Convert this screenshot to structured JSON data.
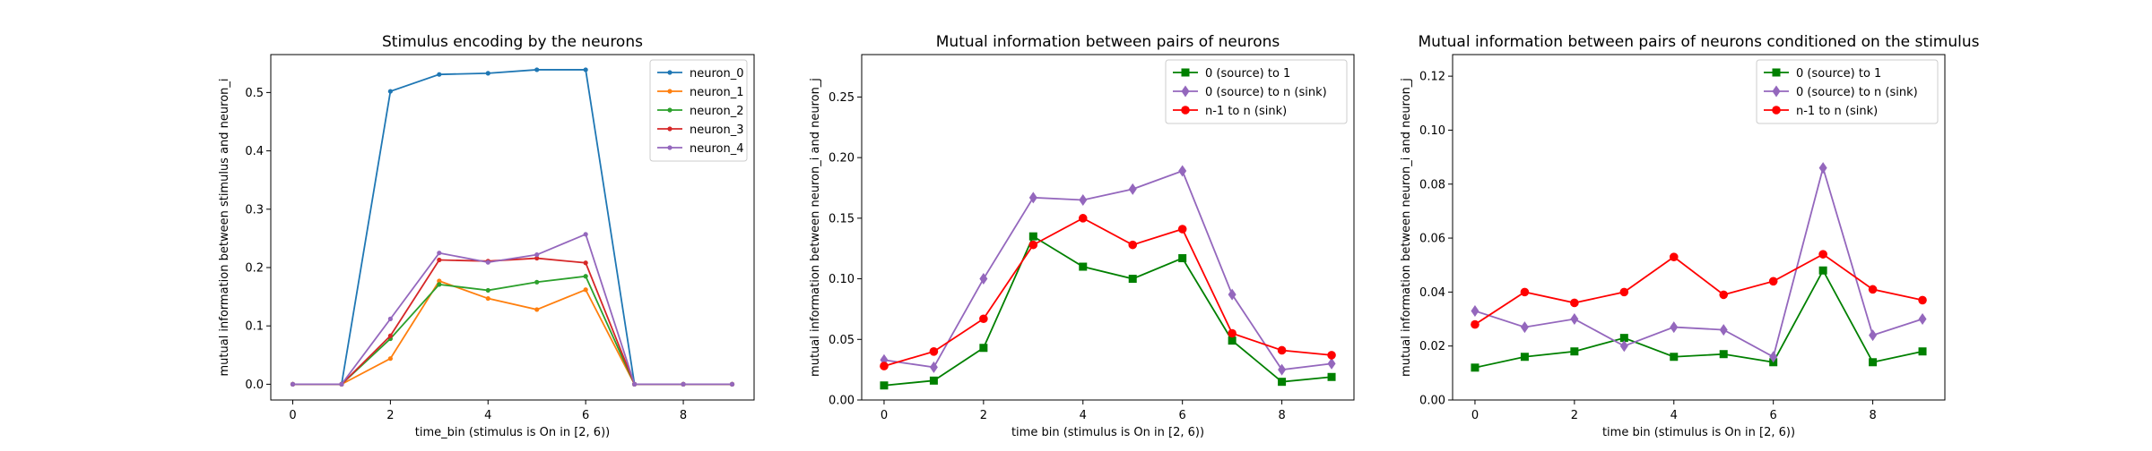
{
  "chart_data": [
    {
      "type": "line",
      "title": "Stimulus encoding by the neurons",
      "xlabel": "time_bin (stimulus is On in [2, 6))",
      "ylabel": "mutual information between stimulus and neuron_i",
      "xlim": [
        -0.45,
        9.45
      ],
      "ylim": [
        -0.027,
        0.565
      ],
      "xticks": [
        0,
        2,
        4,
        6,
        8
      ],
      "xtick_labels": [
        "0",
        "2",
        "4",
        "6",
        "8"
      ],
      "yticks": [
        0.0,
        0.1,
        0.2,
        0.3,
        0.4,
        0.5
      ],
      "ytick_labels": [
        "0.0",
        "0.1",
        "0.2",
        "0.3",
        "0.4",
        "0.5"
      ],
      "grid": false,
      "legend_position": "top-right",
      "x": [
        0,
        1,
        2,
        3,
        4,
        5,
        6,
        7,
        8,
        9
      ],
      "series": [
        {
          "name": "neuron_0",
          "color": "#1f77b4",
          "marker": "dot",
          "values": [
            0.0,
            0.0,
            0.502,
            0.531,
            0.533,
            0.539,
            0.539,
            0.0,
            0.0,
            0.0
          ]
        },
        {
          "name": "neuron_1",
          "color": "#ff7f0e",
          "marker": "dot",
          "values": [
            0.0,
            0.0,
            0.044,
            0.177,
            0.147,
            0.128,
            0.162,
            0.0,
            0.0,
            0.0
          ]
        },
        {
          "name": "neuron_2",
          "color": "#2ca02c",
          "marker": "dot",
          "values": [
            0.0,
            0.0,
            0.078,
            0.171,
            0.161,
            0.175,
            0.185,
            0.0,
            0.0,
            0.0
          ]
        },
        {
          "name": "neuron_3",
          "color": "#d62728",
          "marker": "dot",
          "values": [
            0.0,
            0.0,
            0.083,
            0.213,
            0.211,
            0.216,
            0.208,
            0.0,
            0.0,
            0.0
          ]
        },
        {
          "name": "neuron_4",
          "color": "#9467bd",
          "marker": "dot",
          "values": [
            0.0,
            0.0,
            0.112,
            0.225,
            0.209,
            0.222,
            0.257,
            0.0,
            0.0,
            0.0
          ]
        }
      ]
    },
    {
      "type": "line",
      "title": "Mutual information between pairs of neurons",
      "xlabel": "time bin (stimulus is On in [2, 6))",
      "ylabel": "mutual information between neuron_i and neuron_j",
      "xlim": [
        -0.45,
        9.45
      ],
      "ylim": [
        0.0,
        0.285
      ],
      "xticks": [
        0,
        2,
        4,
        6,
        8
      ],
      "xtick_labels": [
        "0",
        "2",
        "4",
        "6",
        "8"
      ],
      "yticks": [
        0.0,
        0.05,
        0.1,
        0.15,
        0.2,
        0.25
      ],
      "ytick_labels": [
        "0.00",
        "0.05",
        "0.10",
        "0.15",
        "0.20",
        "0.25"
      ],
      "grid": false,
      "legend_position": "top-right",
      "x": [
        0,
        1,
        2,
        3,
        4,
        5,
        6,
        7,
        8,
        9
      ],
      "series": [
        {
          "name": "0 (source) to 1",
          "color": "#008000",
          "marker": "square",
          "values": [
            0.012,
            0.016,
            0.043,
            0.135,
            0.11,
            0.1,
            0.117,
            0.049,
            0.015,
            0.019
          ]
        },
        {
          "name": "0 (source) to n (sink)",
          "color": "#9467bd",
          "marker": "diamond",
          "values": [
            0.033,
            0.027,
            0.1,
            0.167,
            0.165,
            0.174,
            0.189,
            0.087,
            0.025,
            0.03
          ]
        },
        {
          "name": "n-1 to n (sink)",
          "color": "#ff0000",
          "marker": "circle",
          "values": [
            0.028,
            0.04,
            0.067,
            0.128,
            0.15,
            0.128,
            0.141,
            0.055,
            0.041,
            0.037
          ]
        }
      ]
    },
    {
      "type": "line",
      "title": "Mutual information between pairs of neurons conditioned on the stimulus",
      "xlabel": "time bin (stimulus is On in [2, 6))",
      "ylabel": "mutual information between neuron_i and neuron_j",
      "xlim": [
        -0.45,
        9.45
      ],
      "ylim": [
        0.0,
        0.128
      ],
      "xticks": [
        0,
        2,
        4,
        6,
        8
      ],
      "xtick_labels": [
        "0",
        "2",
        "4",
        "6",
        "8"
      ],
      "yticks": [
        0.0,
        0.02,
        0.04,
        0.06,
        0.08,
        0.1,
        0.12
      ],
      "ytick_labels": [
        "0.00",
        "0.02",
        "0.04",
        "0.06",
        "0.08",
        "0.10",
        "0.12"
      ],
      "grid": false,
      "legend_position": "top-right",
      "x": [
        0,
        1,
        2,
        3,
        4,
        5,
        6,
        7,
        8,
        9
      ],
      "series": [
        {
          "name": "0 (source) to 1",
          "color": "#008000",
          "marker": "square",
          "values": [
            0.012,
            0.016,
            0.018,
            0.023,
            0.016,
            0.017,
            0.014,
            0.048,
            0.014,
            0.018
          ]
        },
        {
          "name": "0 (source) to n (sink)",
          "color": "#9467bd",
          "marker": "diamond",
          "values": [
            0.033,
            0.027,
            0.03,
            0.02,
            0.027,
            0.026,
            0.016,
            0.086,
            0.024,
            0.03
          ]
        },
        {
          "name": "n-1 to n (sink)",
          "color": "#ff0000",
          "marker": "circle",
          "values": [
            0.028,
            0.04,
            0.036,
            0.04,
            0.053,
            0.039,
            0.044,
            0.054,
            0.041,
            0.037
          ]
        }
      ]
    }
  ]
}
